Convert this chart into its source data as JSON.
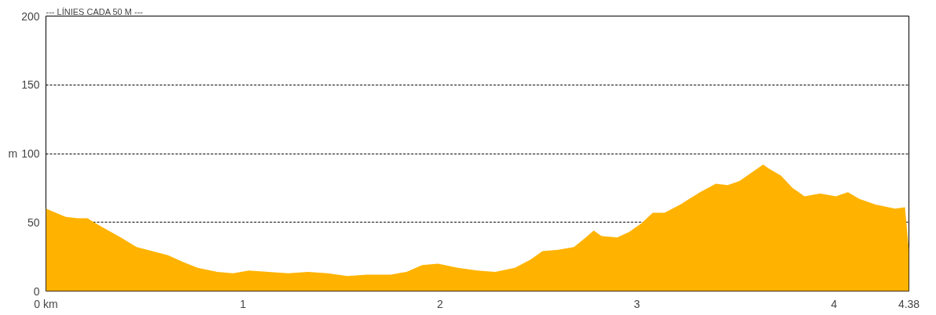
{
  "chart_data": {
    "type": "area",
    "title": "--- LÍNIES CADA 50 M ---",
    "ylabel": "m",
    "x": [
      0,
      0.1,
      0.16,
      0.21,
      0.28,
      0.38,
      0.46,
      0.54,
      0.62,
      0.7,
      0.77,
      0.87,
      0.95,
      1.03,
      1.13,
      1.23,
      1.33,
      1.43,
      1.53,
      1.63,
      1.75,
      1.83,
      1.91,
      1.99,
      2.09,
      2.19,
      2.28,
      2.38,
      2.46,
      2.52,
      2.6,
      2.68,
      2.74,
      2.78,
      2.82,
      2.9,
      2.96,
      3.02,
      3.08,
      3.14,
      3.22,
      3.32,
      3.4,
      3.46,
      3.52,
      3.58,
      3.64,
      3.67,
      3.73,
      3.79,
      3.85,
      3.93,
      4.01,
      4.07,
      4.13,
      4.21,
      4.31,
      4.36,
      4.38
    ],
    "series": [
      {
        "color": "#ffb300",
        "values": [
          60,
          54,
          53,
          53,
          47,
          39,
          32,
          29,
          26,
          21,
          17,
          14,
          13,
          15,
          14,
          13,
          14,
          13,
          11,
          12,
          12,
          14,
          19,
          20,
          17,
          15,
          14,
          17,
          23,
          29,
          30,
          32,
          39,
          44,
          40,
          39,
          43,
          49,
          57,
          57,
          63,
          72,
          78,
          77,
          80,
          86,
          92,
          89,
          84,
          75,
          69,
          71,
          69,
          72,
          67,
          63,
          60,
          61,
          30
        ]
      }
    ],
    "xlim": [
      0,
      4.38
    ],
    "ylim": [
      0,
      200
    ],
    "xticks": [
      {
        "value": 0,
        "label": "0 km"
      },
      1,
      2,
      3,
      4,
      4.38
    ],
    "yticks": [
      0,
      50,
      100,
      150,
      200
    ],
    "grid": "y"
  }
}
